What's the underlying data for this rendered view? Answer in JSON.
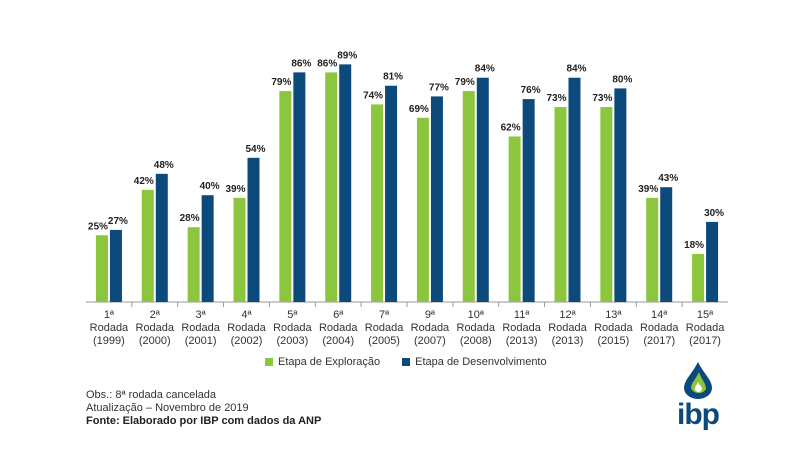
{
  "chart_data": {
    "type": "bar",
    "categories": [
      [
        "1ª",
        "Rodada",
        "(1999)"
      ],
      [
        "2ª",
        "Rodada",
        "(2000)"
      ],
      [
        "3ª",
        "Rodada",
        "(2001)"
      ],
      [
        "4ª",
        "Rodada",
        "(2002)"
      ],
      [
        "5ª",
        "Rodada",
        "(2003)"
      ],
      [
        "6ª",
        "Rodada",
        "(2004)"
      ],
      [
        "7ª",
        "Rodada",
        "(2005)"
      ],
      [
        "9ª",
        "Rodada",
        "(2007)"
      ],
      [
        "10ª",
        "Rodada",
        "(2008)"
      ],
      [
        "11ª",
        "Rodada",
        "(2013)"
      ],
      [
        "12ª",
        "Rodada",
        "(2013)"
      ],
      [
        "13ª",
        "Rodada",
        "(2015)"
      ],
      [
        "14ª",
        "Rodada",
        "(2017)"
      ],
      [
        "15ª",
        "Rodada",
        "(2017)"
      ]
    ],
    "series": [
      {
        "name": "Etapa de Exploração",
        "color": "#8cc63f",
        "values": [
          25,
          42,
          28,
          39,
          79,
          86,
          74,
          69,
          79,
          62,
          73,
          73,
          39,
          18
        ]
      },
      {
        "name": "Etapa de Desenvolvimento",
        "color": "#0d4a7c",
        "values": [
          27,
          48,
          40,
          54,
          86,
          89,
          81,
          77,
          84,
          76,
          84,
          80,
          43,
          30
        ]
      }
    ],
    "value_suffix": "%",
    "ylim": [
      0,
      100
    ],
    "grid": false,
    "legend_position": "bottom"
  },
  "notes": {
    "obs": "Obs.: 8ª rodada cancelada",
    "update": "Atualização – Novembro de 2019",
    "source": "Fonte: Elaborado por IBP com dados da ANP"
  },
  "logo": {
    "text": "ibp",
    "drop_colors": [
      "#0d4a7c",
      "#8cc63f"
    ]
  }
}
